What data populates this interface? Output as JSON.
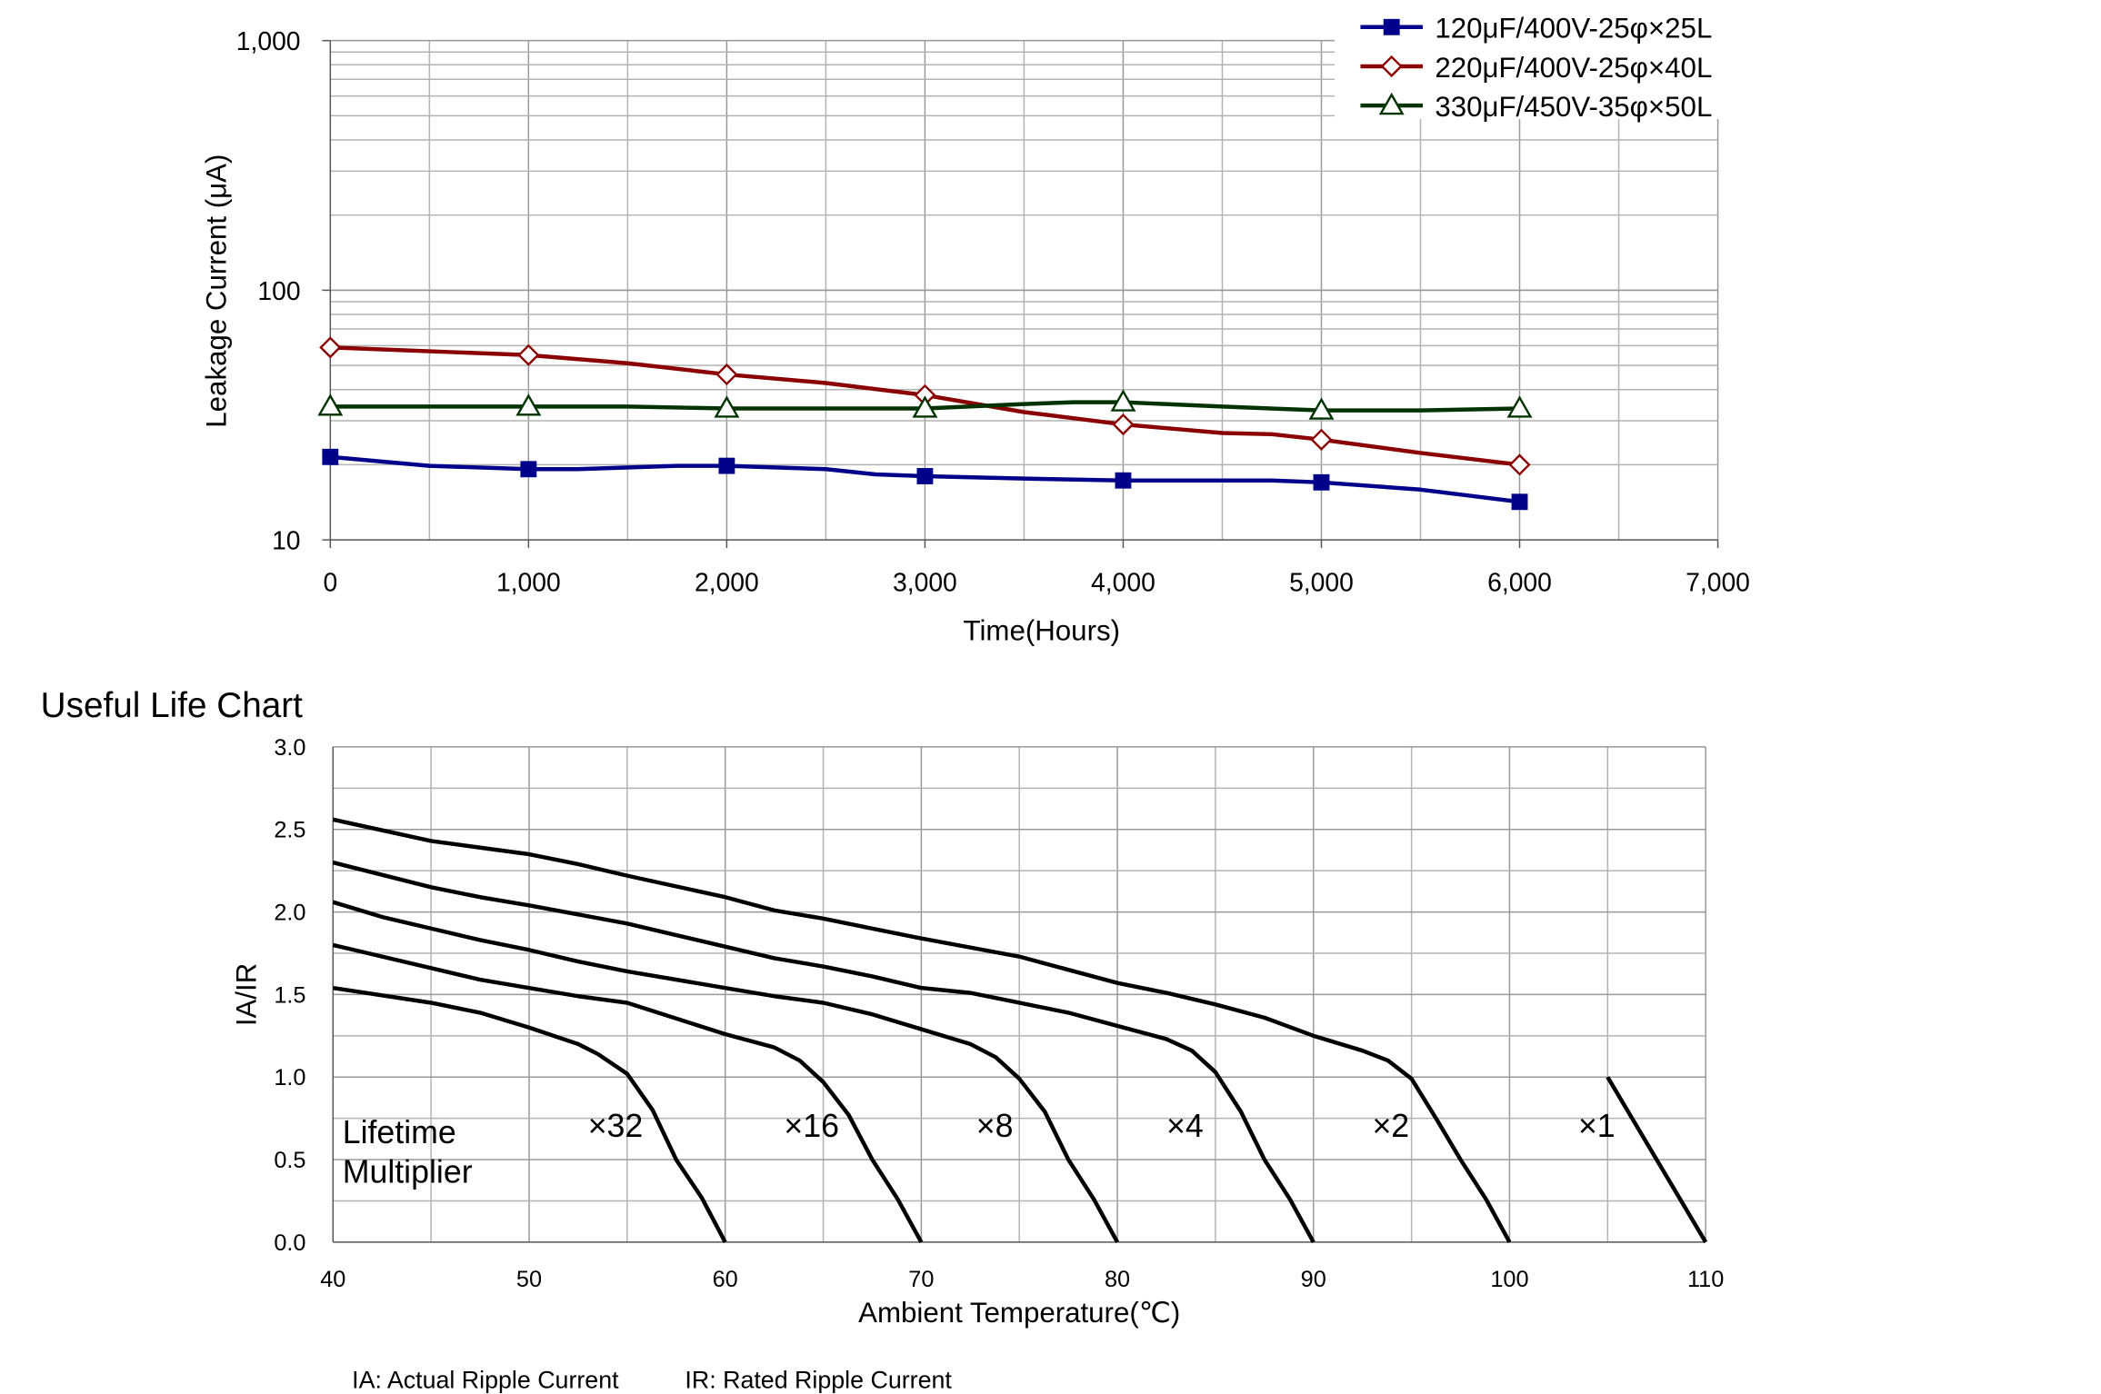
{
  "chart_data": [
    {
      "type": "line",
      "title": "",
      "xlabel": "Time(Hours)",
      "ylabel": "Leakage Current (μA)",
      "yscale": "log",
      "xlim": [
        0,
        7000
      ],
      "ylim": [
        10,
        1000
      ],
      "x_ticks": [
        0,
        1000,
        2000,
        3000,
        4000,
        5000,
        6000,
        7000
      ],
      "x_tick_labels": [
        "0",
        "1,000",
        "2,000",
        "3,000",
        "4,000",
        "5,000",
        "6,000",
        "7,000"
      ],
      "y_ticks": [
        10,
        100,
        1000
      ],
      "y_tick_labels": [
        "10",
        "100",
        "1,000"
      ],
      "legend_position": "top-right",
      "grid": true,
      "series": [
        {
          "name": "120μF/400V-25φ×25L",
          "color": "#00008b",
          "marker": "filled-square",
          "points": [
            [
              0,
              21.5
            ],
            [
              500,
              19.8
            ],
            [
              1000,
              19.2
            ],
            [
              1250,
              19.2
            ],
            [
              1750,
              19.8
            ],
            [
              2000,
              19.8
            ],
            [
              2500,
              19.2
            ],
            [
              2750,
              18.3
            ],
            [
              3000,
              18.0
            ],
            [
              3500,
              17.6
            ],
            [
              4000,
              17.3
            ],
            [
              4500,
              17.3
            ],
            [
              4750,
              17.3
            ],
            [
              5000,
              17.0
            ],
            [
              5500,
              15.9
            ],
            [
              6000,
              14.2
            ]
          ],
          "marker_points": [
            [
              0,
              21.5
            ],
            [
              1000,
              19.2
            ],
            [
              2000,
              19.8
            ],
            [
              3000,
              18.0
            ],
            [
              4000,
              17.3
            ],
            [
              5000,
              17.0
            ],
            [
              6000,
              14.2
            ]
          ]
        },
        {
          "name": "220μF/400V-25φ×40L",
          "color": "#8b0000",
          "marker": "hollow-diamond",
          "points": [
            [
              0,
              59
            ],
            [
              1000,
              55
            ],
            [
              1500,
              51
            ],
            [
              2000,
              46
            ],
            [
              2500,
              42.5
            ],
            [
              3000,
              38
            ],
            [
              3500,
              32.5
            ],
            [
              4000,
              29
            ],
            [
              4500,
              26.8
            ],
            [
              4750,
              26.5
            ],
            [
              5000,
              25.2
            ],
            [
              5500,
              22.3
            ],
            [
              6000,
              20
            ]
          ],
          "marker_points": [
            [
              0,
              59
            ],
            [
              1000,
              55
            ],
            [
              2000,
              46
            ],
            [
              3000,
              38
            ],
            [
              4000,
              29
            ],
            [
              5000,
              25.2
            ],
            [
              6000,
              20
            ]
          ]
        },
        {
          "name": "330μF/450V-35φ×50L",
          "color": "#003300",
          "marker": "hollow-triangle",
          "points": [
            [
              0,
              34.2
            ],
            [
              1000,
              34.2
            ],
            [
              1500,
              34.2
            ],
            [
              2000,
              33.6
            ],
            [
              2500,
              33.6
            ],
            [
              3000,
              33.6
            ],
            [
              3500,
              35.0
            ],
            [
              3750,
              35.6
            ],
            [
              4000,
              35.6
            ],
            [
              4500,
              34.2
            ],
            [
              5000,
              33.0
            ],
            [
              5500,
              33.0
            ],
            [
              6000,
              33.6
            ]
          ],
          "marker_points": [
            [
              0,
              34.2
            ],
            [
              1000,
              34.2
            ],
            [
              2000,
              33.6
            ],
            [
              3000,
              33.6
            ],
            [
              4000,
              35.6
            ],
            [
              5000,
              33.0
            ],
            [
              6000,
              33.6
            ]
          ]
        }
      ]
    },
    {
      "type": "line",
      "title": "Useful Life Chart",
      "xlabel": "Ambient Temperature(℃)",
      "ylabel": "IA/IR",
      "xlim": [
        40,
        110
      ],
      "ylim": [
        0,
        3
      ],
      "x_ticks": [
        40,
        50,
        60,
        70,
        80,
        90,
        100,
        110
      ],
      "y_ticks": [
        0.0,
        0.5,
        1.0,
        1.5,
        2.0,
        2.5,
        3.0
      ],
      "y_tick_labels": [
        "0.0",
        "0.5",
        "1.0",
        "1.5",
        "2.0",
        "2.5",
        "3.0"
      ],
      "grid": true,
      "series": [
        {
          "name": "×32",
          "points": [
            [
              40,
              1.54
            ],
            [
              45,
              1.45
            ],
            [
              47.5,
              1.39
            ],
            [
              50,
              1.3
            ],
            [
              52.5,
              1.2
            ],
            [
              53.5,
              1.14
            ],
            [
              55,
              1.02
            ],
            [
              56.3,
              0.8
            ],
            [
              57.5,
              0.5
            ],
            [
              58.8,
              0.27
            ],
            [
              60,
              0.0
            ]
          ]
        },
        {
          "name": "×16",
          "points": [
            [
              40,
              1.8
            ],
            [
              45,
              1.66
            ],
            [
              47.5,
              1.59
            ],
            [
              50,
              1.54
            ],
            [
              52.5,
              1.49
            ],
            [
              55,
              1.45
            ],
            [
              60,
              1.26
            ],
            [
              62.5,
              1.18
            ],
            [
              63.8,
              1.1
            ],
            [
              65,
              0.97
            ],
            [
              66.3,
              0.77
            ],
            [
              67.5,
              0.5
            ],
            [
              68.8,
              0.26
            ],
            [
              70,
              0.0
            ]
          ]
        },
        {
          "name": "×8",
          "points": [
            [
              40,
              2.06
            ],
            [
              42.5,
              1.97
            ],
            [
              45,
              1.9
            ],
            [
              47.5,
              1.83
            ],
            [
              50,
              1.77
            ],
            [
              52.5,
              1.7
            ],
            [
              55,
              1.64
            ],
            [
              60,
              1.54
            ],
            [
              62.5,
              1.49
            ],
            [
              65,
              1.45
            ],
            [
              67.5,
              1.38
            ],
            [
              70,
              1.29
            ],
            [
              72.5,
              1.2
            ],
            [
              73.8,
              1.12
            ],
            [
              75,
              0.99
            ],
            [
              76.3,
              0.79
            ],
            [
              77.5,
              0.5
            ],
            [
              78.8,
              0.26
            ],
            [
              80,
              0.0
            ]
          ]
        },
        {
          "name": "×4",
          "points": [
            [
              40,
              2.3
            ],
            [
              45,
              2.15
            ],
            [
              47.5,
              2.09
            ],
            [
              50,
              2.04
            ],
            [
              55,
              1.93
            ],
            [
              57.5,
              1.86
            ],
            [
              60,
              1.79
            ],
            [
              62.5,
              1.72
            ],
            [
              65,
              1.67
            ],
            [
              67.5,
              1.61
            ],
            [
              70,
              1.54
            ],
            [
              72.5,
              1.51
            ],
            [
              75,
              1.45
            ],
            [
              77.5,
              1.39
            ],
            [
              80,
              1.31
            ],
            [
              82.5,
              1.23
            ],
            [
              83.8,
              1.16
            ],
            [
              85,
              1.03
            ],
            [
              86.3,
              0.79
            ],
            [
              87.5,
              0.5
            ],
            [
              88.8,
              0.26
            ],
            [
              90,
              0.0
            ]
          ]
        },
        {
          "name": "×2",
          "points": [
            [
              40,
              2.56
            ],
            [
              45,
              2.43
            ],
            [
              47.5,
              2.39
            ],
            [
              50,
              2.35
            ],
            [
              52.5,
              2.29
            ],
            [
              55,
              2.22
            ],
            [
              60,
              2.09
            ],
            [
              62.5,
              2.01
            ],
            [
              65,
              1.96
            ],
            [
              67.5,
              1.9
            ],
            [
              70,
              1.84
            ],
            [
              75,
              1.73
            ],
            [
              77.5,
              1.65
            ],
            [
              80,
              1.57
            ],
            [
              82.5,
              1.51
            ],
            [
              85,
              1.44
            ],
            [
              87.5,
              1.36
            ],
            [
              90,
              1.25
            ],
            [
              92.5,
              1.16
            ],
            [
              93.8,
              1.1
            ],
            [
              95,
              0.99
            ],
            [
              96.3,
              0.74
            ],
            [
              97.5,
              0.5
            ],
            [
              98.8,
              0.26
            ],
            [
              100,
              0.0
            ]
          ]
        },
        {
          "name": "×1",
          "points": [
            [
              105,
              1.0
            ],
            [
              110,
              0.0
            ]
          ]
        }
      ],
      "curve_labels": [
        {
          "text": "×32",
          "x": 53,
          "y": 0.72
        },
        {
          "text": "×16",
          "x": 63,
          "y": 0.72
        },
        {
          "text": "×8",
          "x": 72.8,
          "y": 0.72
        },
        {
          "text": "×4",
          "x": 82.5,
          "y": 0.72
        },
        {
          "text": "×2",
          "x": 93,
          "y": 0.72
        },
        {
          "text": "×1",
          "x": 103.5,
          "y": 0.72
        }
      ],
      "annotation": [
        "Lifetime",
        "Multiplier"
      ],
      "footnotes": [
        "IA: Actual Ripple Current",
        "IR: Rated Ripple Current"
      ]
    }
  ]
}
